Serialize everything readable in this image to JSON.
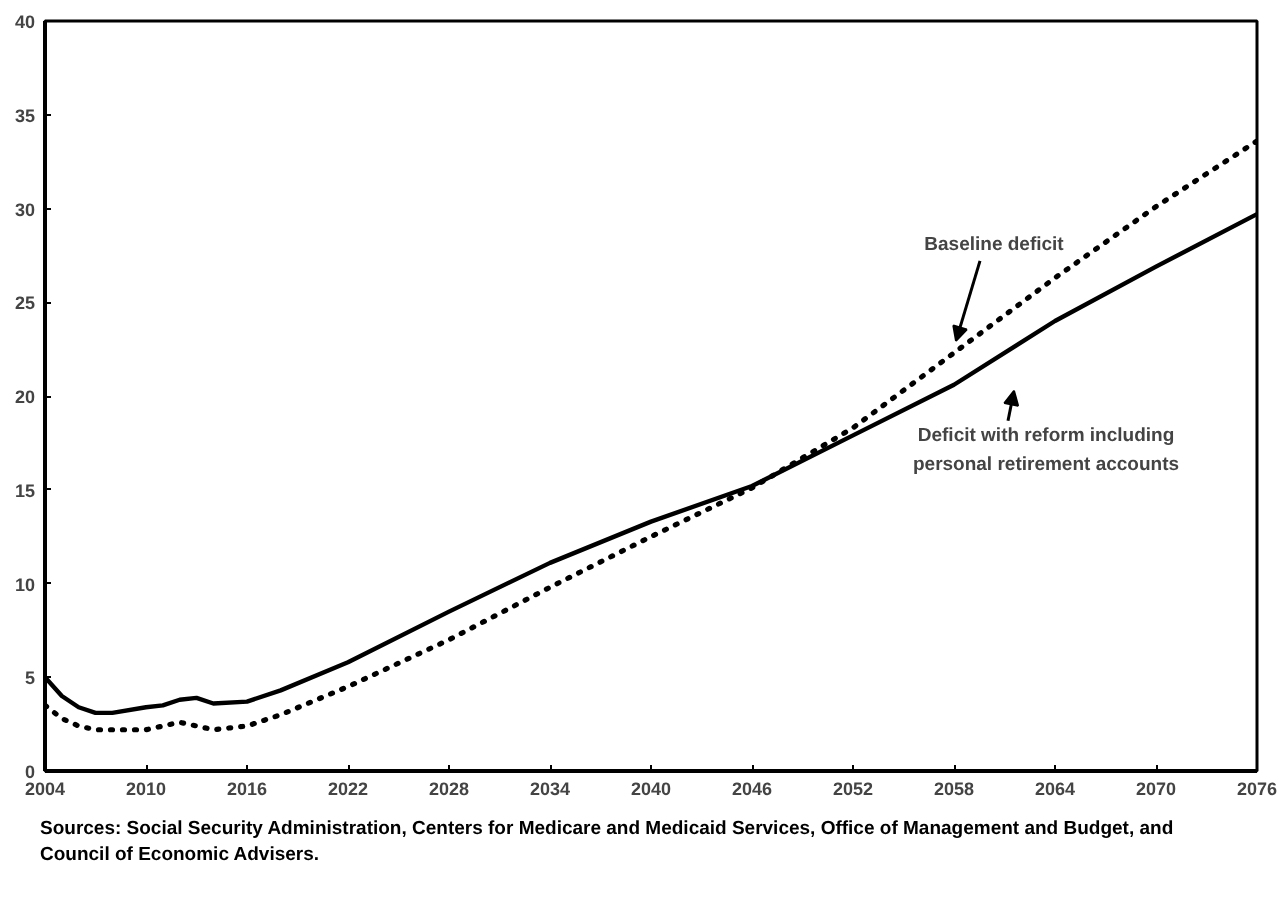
{
  "chart_data": {
    "type": "line",
    "x": [
      2004,
      2005,
      2006,
      2007,
      2008,
      2010,
      2011,
      2012,
      2013,
      2014,
      2016,
      2018,
      2022,
      2028,
      2034,
      2040,
      2046,
      2052,
      2058,
      2064,
      2070,
      2076
    ],
    "series": [
      {
        "color": "#000000",
        "line_style": "solid",
        "values": [
          5,
          4,
          3.4,
          3.1,
          3.1,
          3.4,
          3.5,
          3.8,
          3.9,
          3.6,
          3.7,
          4.3,
          5.8,
          8.5,
          11.1,
          13.3,
          15.2,
          17.9,
          20.6,
          24.0,
          26.9,
          29.7
        ]
      },
      {
        "color": "#000000",
        "line_style": "dotted",
        "values": [
          3.5,
          2.8,
          2.4,
          2.2,
          2.2,
          2.2,
          2.4,
          2.6,
          2.4,
          2.2,
          2.4,
          3.0,
          4.5,
          7.0,
          9.8,
          12.5,
          15.1,
          18.3,
          22.3,
          26.3,
          30.1,
          33.6
        ]
      }
    ],
    "xlim": [
      2004,
      2076
    ],
    "xticks": [
      2004,
      2010,
      2016,
      2022,
      2028,
      2034,
      2040,
      2046,
      2052,
      2058,
      2064,
      2070,
      2076
    ],
    "ylim": [
      0,
      40
    ],
    "yticks": [
      0,
      5,
      10,
      15,
      20,
      25,
      30,
      35,
      40
    ],
    "grid": false,
    "marker": "none",
    "annotations": [
      {
        "text": "Baseline deficit",
        "x": 2058,
        "y": 22.3
      },
      {
        "text": "Deficit with reform including\npersonal retirement accounts",
        "x": 2058,
        "y": 20.6
      },
      "Sources: Social Security Administration, Centers for Medicare and Medicaid Services, Office of Management and Budget, and Council of Economic Advisers."
    ]
  }
}
